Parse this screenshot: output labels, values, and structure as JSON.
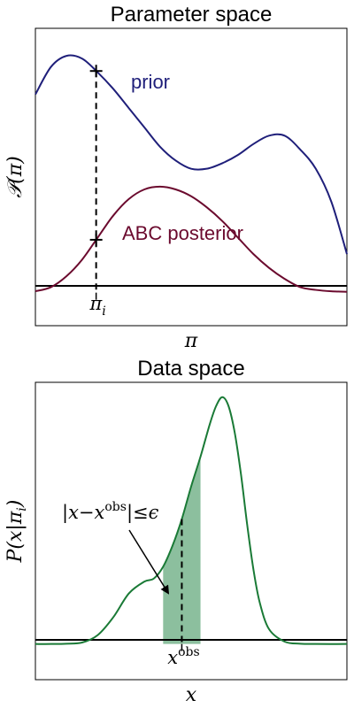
{
  "chart_data": [
    {
      "type": "line",
      "title": "Parameter space",
      "xlabel": "π",
      "ylabel": "𝒫(π)",
      "xlim": [
        0,
        1
      ],
      "ylim": [
        -0.12,
        0.96
      ],
      "grid": false,
      "baseline": 0,
      "x_tick_label": "π",
      "x_tick_label_sub": "i",
      "marker_x": 0.195,
      "series": [
        {
          "name": "prior",
          "color": "#1f1f7a",
          "x": [
            0,
            0.05,
            0.1,
            0.15,
            0.2,
            0.25,
            0.3,
            0.35,
            0.4,
            0.45,
            0.5,
            0.55,
            0.6,
            0.65,
            0.7,
            0.75,
            0.8,
            0.85,
            0.9,
            0.95,
            1
          ],
          "y": [
            0.72,
            0.82,
            0.86,
            0.85,
            0.8,
            0.74,
            0.67,
            0.6,
            0.53,
            0.48,
            0.45,
            0.45,
            0.47,
            0.5,
            0.54,
            0.57,
            0.57,
            0.52,
            0.45,
            0.33,
            0.14
          ]
        },
        {
          "name": "ABC posterior",
          "color": "#6b0a2e",
          "x": [
            0,
            0.05,
            0.1,
            0.15,
            0.2,
            0.25,
            0.3,
            0.35,
            0.4,
            0.45,
            0.5,
            0.55,
            0.6,
            0.65,
            0.7,
            0.75,
            0.8,
            0.85,
            0.9,
            0.95,
            1
          ],
          "y": [
            0.005,
            0.02,
            0.06,
            0.12,
            0.2,
            0.28,
            0.34,
            0.375,
            0.385,
            0.375,
            0.35,
            0.31,
            0.26,
            0.2,
            0.14,
            0.09,
            0.05,
            0.02,
            0.01,
            0.005,
            0.003
          ]
        }
      ]
    },
    {
      "type": "area",
      "title": "Data space",
      "xlabel": "x",
      "ylabel": "P(x|π_i)",
      "xlim": [
        0,
        1
      ],
      "ylim": [
        -0.12,
        0.88
      ],
      "grid": false,
      "baseline": 0,
      "x_tick_label": "x",
      "x_tick_label_sup": "obs",
      "x_obs": 0.47,
      "epsilon": 0.06,
      "annotation": "|x−x",
      "annotation_sup": "obs",
      "annotation_end": "|≤ϵ",
      "series": [
        {
          "name": "P(x|π_i)",
          "color": "#1a7a36",
          "fill": "#2e8b4f",
          "x": [
            0,
            0.05,
            0.1,
            0.15,
            0.2,
            0.25,
            0.3,
            0.35,
            0.38,
            0.41,
            0.44,
            0.47,
            0.5,
            0.53,
            0.56,
            0.58,
            0.6,
            0.62,
            0.64,
            0.66,
            0.68,
            0.7,
            0.72,
            0.75,
            0.8,
            0.85,
            0.9,
            1
          ],
          "y": [
            0,
            0,
            0.001,
            0.005,
            0.03,
            0.09,
            0.17,
            0.21,
            0.22,
            0.26,
            0.33,
            0.42,
            0.53,
            0.63,
            0.74,
            0.8,
            0.83,
            0.8,
            0.71,
            0.57,
            0.4,
            0.25,
            0.14,
            0.05,
            0.008,
            0.001,
            0,
            0
          ]
        }
      ]
    }
  ]
}
